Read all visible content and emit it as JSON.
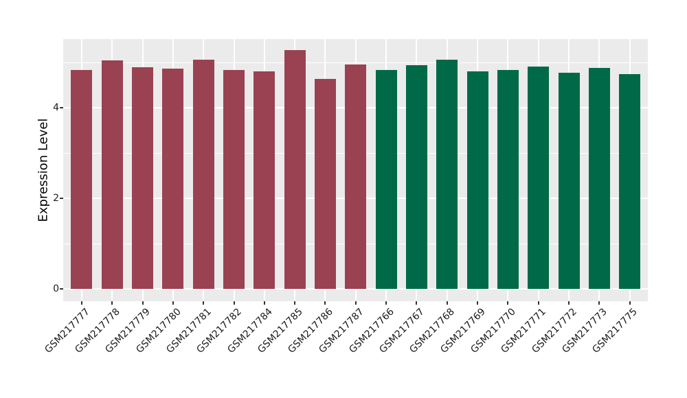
{
  "chart_data": {
    "type": "bar",
    "title": "",
    "xlabel": "",
    "ylabel": "Expression Level",
    "categories": [
      "GSM217777",
      "GSM217778",
      "GSM217779",
      "GSM217780",
      "GSM217781",
      "GSM217782",
      "GSM217784",
      "GSM217785",
      "GSM217786",
      "GSM217787",
      "GSM217766",
      "GSM217767",
      "GSM217768",
      "GSM217769",
      "GSM217770",
      "GSM217771",
      "GSM217772",
      "GSM217773",
      "GSM217775"
    ],
    "values": [
      4.84,
      5.05,
      4.89,
      4.86,
      5.06,
      4.84,
      4.81,
      5.27,
      4.64,
      4.95,
      4.84,
      4.94,
      5.06,
      4.81,
      4.83,
      4.91,
      4.78,
      4.88,
      4.74
    ],
    "group_index": [
      0,
      0,
      0,
      0,
      0,
      0,
      0,
      0,
      0,
      0,
      1,
      1,
      1,
      1,
      1,
      1,
      1,
      1,
      1
    ],
    "group_colors": [
      "#9A4252",
      "#006A48"
    ],
    "yticks": [
      0,
      2,
      4
    ],
    "minor_yticks": [
      1,
      3,
      5
    ],
    "ylim": [
      0,
      5.5
    ],
    "grid": "on",
    "legend": "none",
    "colors": {
      "panel_background": "#EBEBEB",
      "figure_background": "#FFFFFF",
      "gridline": "#FFFFFF",
      "tick_mark": "#333333",
      "tick_text": "#1A1A1A",
      "axis_title_text": "#000000"
    }
  }
}
